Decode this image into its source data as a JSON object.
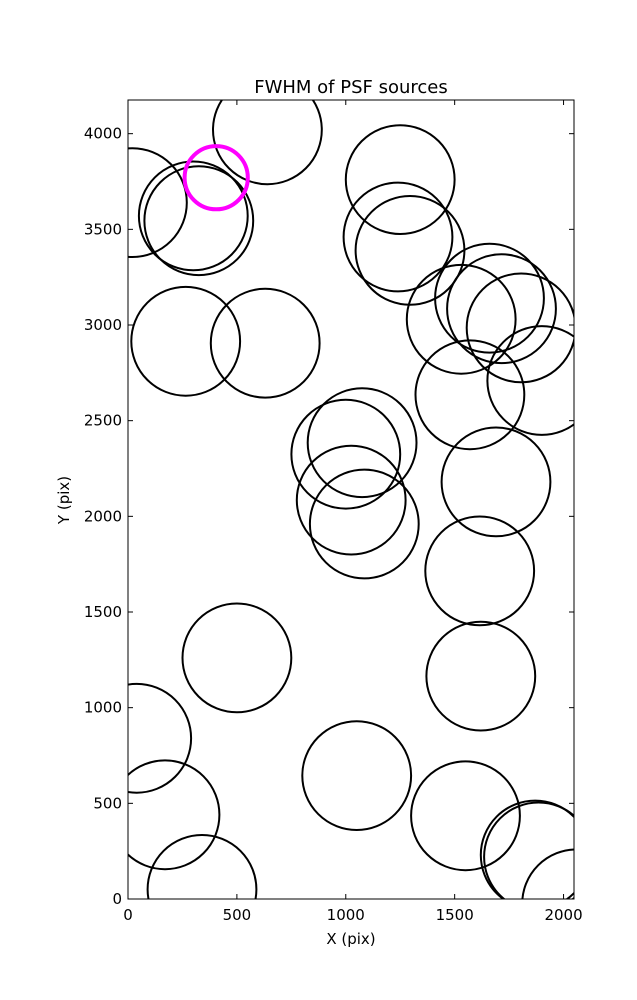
{
  "chart_data": {
    "type": "scatter",
    "title": "FWHM of PSF sources",
    "xlabel": "X (pix)",
    "ylabel": "Y (pix)",
    "xlim": [
      0,
      2048
    ],
    "ylim": [
      0,
      4176
    ],
    "xticks": [
      0,
      500,
      1000,
      1500,
      2000
    ],
    "yticks": [
      0,
      500,
      1000,
      1500,
      2000,
      2500,
      3000,
      3500,
      4000
    ],
    "grid": false,
    "marker": "circle outline",
    "series": [
      {
        "color": "#000000",
        "points": [
          {
            "x": 640,
            "y": 4020,
            "r": 250
          },
          {
            "x": 20,
            "y": 3640,
            "r": 250
          },
          {
            "x": 300,
            "y": 3570,
            "r": 250
          },
          {
            "x": 325,
            "y": 3545,
            "r": 250
          },
          {
            "x": 1250,
            "y": 3760,
            "r": 250
          },
          {
            "x": 1240,
            "y": 3460,
            "r": 250
          },
          {
            "x": 1295,
            "y": 3390,
            "r": 250
          },
          {
            "x": 1530,
            "y": 3030,
            "r": 250
          },
          {
            "x": 1660,
            "y": 3140,
            "r": 250
          },
          {
            "x": 1715,
            "y": 3085,
            "r": 250
          },
          {
            "x": 1805,
            "y": 2985,
            "r": 250
          },
          {
            "x": 1900,
            "y": 2710,
            "r": 250
          },
          {
            "x": 1570,
            "y": 2635,
            "r": 250
          },
          {
            "x": 265,
            "y": 2915,
            "r": 250
          },
          {
            "x": 630,
            "y": 2905,
            "r": 250
          },
          {
            "x": 1000,
            "y": 2325,
            "r": 250
          },
          {
            "x": 1075,
            "y": 2385,
            "r": 250
          },
          {
            "x": 1025,
            "y": 2085,
            "r": 250
          },
          {
            "x": 1085,
            "y": 1960,
            "r": 250
          },
          {
            "x": 1690,
            "y": 2180,
            "r": 250
          },
          {
            "x": 1615,
            "y": 1715,
            "r": 250
          },
          {
            "x": 500,
            "y": 1260,
            "r": 250
          },
          {
            "x": 1620,
            "y": 1165,
            "r": 250
          },
          {
            "x": 40,
            "y": 840,
            "r": 250
          },
          {
            "x": 170,
            "y": 440,
            "r": 250
          },
          {
            "x": 340,
            "y": 50,
            "r": 250
          },
          {
            "x": 1050,
            "y": 645,
            "r": 250
          },
          {
            "x": 1550,
            "y": 435,
            "r": 250
          },
          {
            "x": 1870,
            "y": 230,
            "r": 250
          },
          {
            "x": 1885,
            "y": 220,
            "r": 250
          },
          {
            "x": 2060,
            "y": -25,
            "r": 250
          }
        ]
      },
      {
        "color": "#ff00ff",
        "highlight": true,
        "points": [
          {
            "x": 405,
            "y": 3770,
            "r": 145
          }
        ]
      }
    ]
  }
}
